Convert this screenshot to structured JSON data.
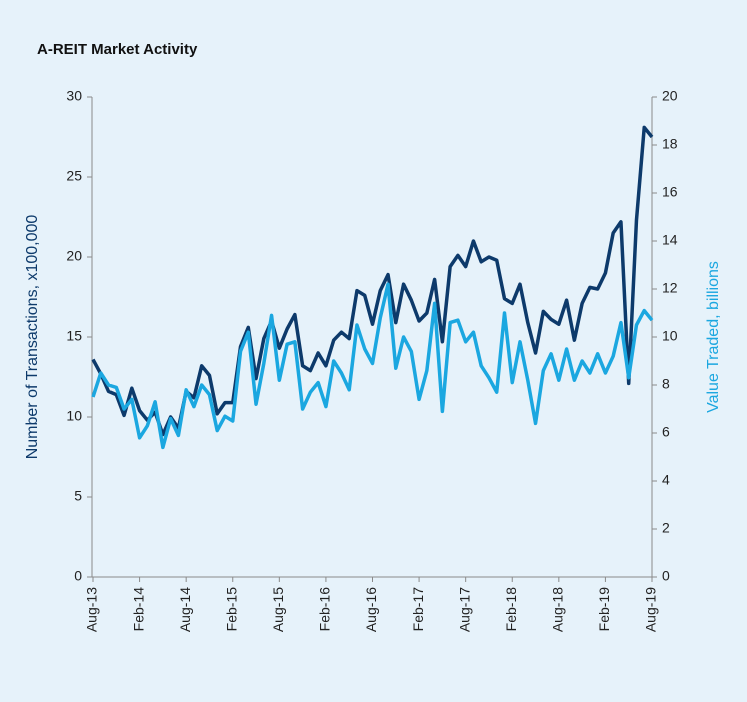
{
  "chart_data": {
    "type": "line",
    "title": "A-REIT Market Activity",
    "ylabel": "Number of Transactions, x100,000",
    "y2label": "Value Traded, billions",
    "categories": [
      "Aug-13",
      null,
      null,
      null,
      null,
      null,
      "Feb-14",
      null,
      null,
      null,
      null,
      null,
      "Aug-14",
      null,
      null,
      null,
      null,
      null,
      "Feb-15",
      null,
      null,
      null,
      null,
      null,
      "Aug-15",
      null,
      null,
      null,
      null,
      null,
      "Feb-16",
      null,
      null,
      null,
      null,
      null,
      "Aug-16",
      null,
      null,
      null,
      null,
      null,
      "Feb-17",
      null,
      null,
      null,
      null,
      null,
      "Aug-17",
      null,
      null,
      null,
      null,
      null,
      "Feb-18",
      null,
      null,
      null,
      null,
      null,
      "Aug-18",
      null,
      null,
      null,
      null,
      null,
      "Feb-19",
      null,
      null,
      null,
      null,
      null,
      "Aug-19"
    ],
    "series": [
      {
        "color": "#0d3a6b",
        "axis": "y",
        "values": [
          13.6,
          12.7,
          11.6,
          11.4,
          10.1,
          11.8,
          10.4,
          9.8,
          10.3,
          8.9,
          10.0,
          9.3,
          11.6,
          11.2,
          13.2,
          12.6,
          10.2,
          10.9,
          10.9,
          14.4,
          15.6,
          12.4,
          14.9,
          16.0,
          14.3,
          15.5,
          16.4,
          13.2,
          12.9,
          14.0,
          13.2,
          14.8,
          15.3,
          14.9,
          17.9,
          17.6,
          15.8,
          17.9,
          18.9,
          15.9,
          18.3,
          17.3,
          16.0,
          16.5,
          18.6,
          14.7,
          19.4,
          20.1,
          19.4,
          21.0,
          19.7,
          20.0,
          19.8,
          17.4,
          17.1,
          18.3,
          15.9,
          14.0,
          16.6,
          16.1,
          15.8,
          17.3,
          14.8,
          17.1,
          18.1,
          18.0,
          19.0,
          21.5,
          22.2,
          12.1,
          22.3,
          28.1,
          27.5
        ]
      },
      {
        "color": "#1ba7e0",
        "axis": "y2",
        "values": [
          7.5,
          8.5,
          8.0,
          7.9,
          7.0,
          7.4,
          5.8,
          6.3,
          7.3,
          5.4,
          6.6,
          5.9,
          7.8,
          7.1,
          8.0,
          7.6,
          6.1,
          6.7,
          6.5,
          9.4,
          10.2,
          7.2,
          8.9,
          10.9,
          8.2,
          9.7,
          9.8,
          7.0,
          7.7,
          8.1,
          7.1,
          9.0,
          8.5,
          7.8,
          10.5,
          9.5,
          8.9,
          10.8,
          12.2,
          8.7,
          10.0,
          9.4,
          7.4,
          8.6,
          11.4,
          6.9,
          10.6,
          10.7,
          9.8,
          10.2,
          8.8,
          8.3,
          7.7,
          11.0,
          8.1,
          9.8,
          8.2,
          6.4,
          8.6,
          9.3,
          8.2,
          9.5,
          8.2,
          9.0,
          8.5,
          9.3,
          8.5,
          9.2,
          10.6,
          8.3,
          10.5,
          11.1,
          10.7
        ]
      }
    ],
    "ylim": [
      0,
      30
    ],
    "yticks": [
      0,
      5,
      10,
      15,
      20,
      25,
      30
    ],
    "y2lim": [
      0,
      20
    ],
    "y2ticks": [
      0,
      2,
      4,
      6,
      8,
      10,
      12,
      14,
      16,
      18,
      20
    ],
    "ylabel_color": "#0d3a6b",
    "y2label_color": "#1ba7e0",
    "background": "#e6f2fa"
  }
}
